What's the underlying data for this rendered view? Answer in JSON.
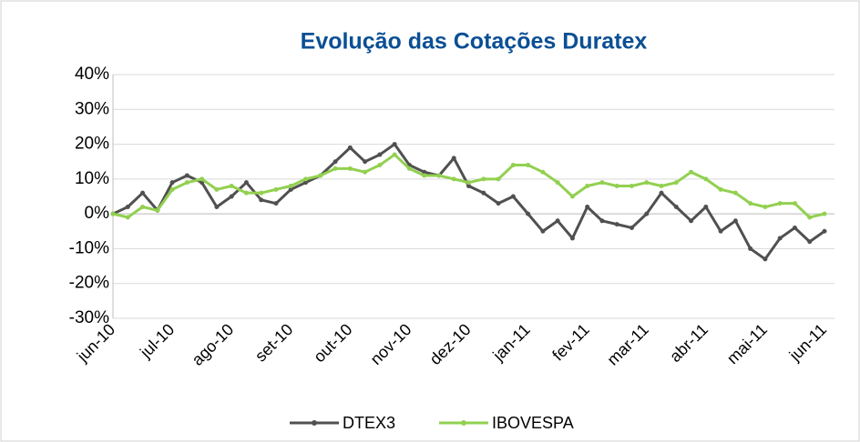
{
  "chart_data": {
    "type": "line",
    "title": "Evolução das Cotações Duratex",
    "categories": [
      "jun-10",
      null,
      null,
      null,
      "jul-10",
      null,
      null,
      null,
      "ago-10",
      null,
      null,
      null,
      "set-10",
      null,
      null,
      null,
      "out-10",
      null,
      null,
      null,
      "nov-10",
      null,
      null,
      null,
      "dez-10",
      null,
      null,
      null,
      "jan-11",
      null,
      null,
      null,
      "fev-11",
      null,
      null,
      null,
      "mar-11",
      null,
      null,
      null,
      "abr-11",
      null,
      null,
      null,
      "mai-11",
      null,
      null,
      null,
      "jun-11"
    ],
    "series": [
      {
        "name": "DTEX3",
        "color": "#505050",
        "values": [
          0,
          2,
          6,
          1,
          9,
          11,
          9,
          2,
          5,
          9,
          4,
          3,
          7,
          9,
          11,
          15,
          19,
          15,
          17,
          20,
          14,
          12,
          11,
          16,
          8,
          6,
          3,
          5,
          0,
          -5,
          -2,
          -7,
          2,
          -2,
          -3,
          -4,
          0,
          6,
          2,
          -2,
          2,
          -5,
          -2,
          -10,
          -13,
          -7,
          -4,
          -8,
          -5
        ]
      },
      {
        "name": "IBOVESPA",
        "color": "#92d050",
        "values": [
          0,
          -1,
          2,
          1,
          7,
          9,
          10,
          7,
          8,
          6,
          6,
          7,
          8,
          10,
          11,
          13,
          13,
          12,
          14,
          17,
          13,
          11,
          11,
          10,
          9,
          10,
          10,
          14,
          14,
          12,
          9,
          5,
          8,
          9,
          8,
          8,
          9,
          8,
          9,
          12,
          10,
          7,
          6,
          3,
          2,
          3,
          3,
          -1,
          0
        ]
      }
    ],
    "ylim": [
      -30,
      40
    ],
    "yticks": [
      {
        "value": -30,
        "label": "-30%"
      },
      {
        "value": -20,
        "label": "-20%"
      },
      {
        "value": -10,
        "label": "-10%"
      },
      {
        "value": 0,
        "label": "0%"
      },
      {
        "value": 10,
        "label": "10%"
      },
      {
        "value": 20,
        "label": "20%"
      },
      {
        "value": 30,
        "label": "30%"
      },
      {
        "value": 40,
        "label": "40%"
      }
    ],
    "grid": true,
    "legend": "bottom"
  }
}
